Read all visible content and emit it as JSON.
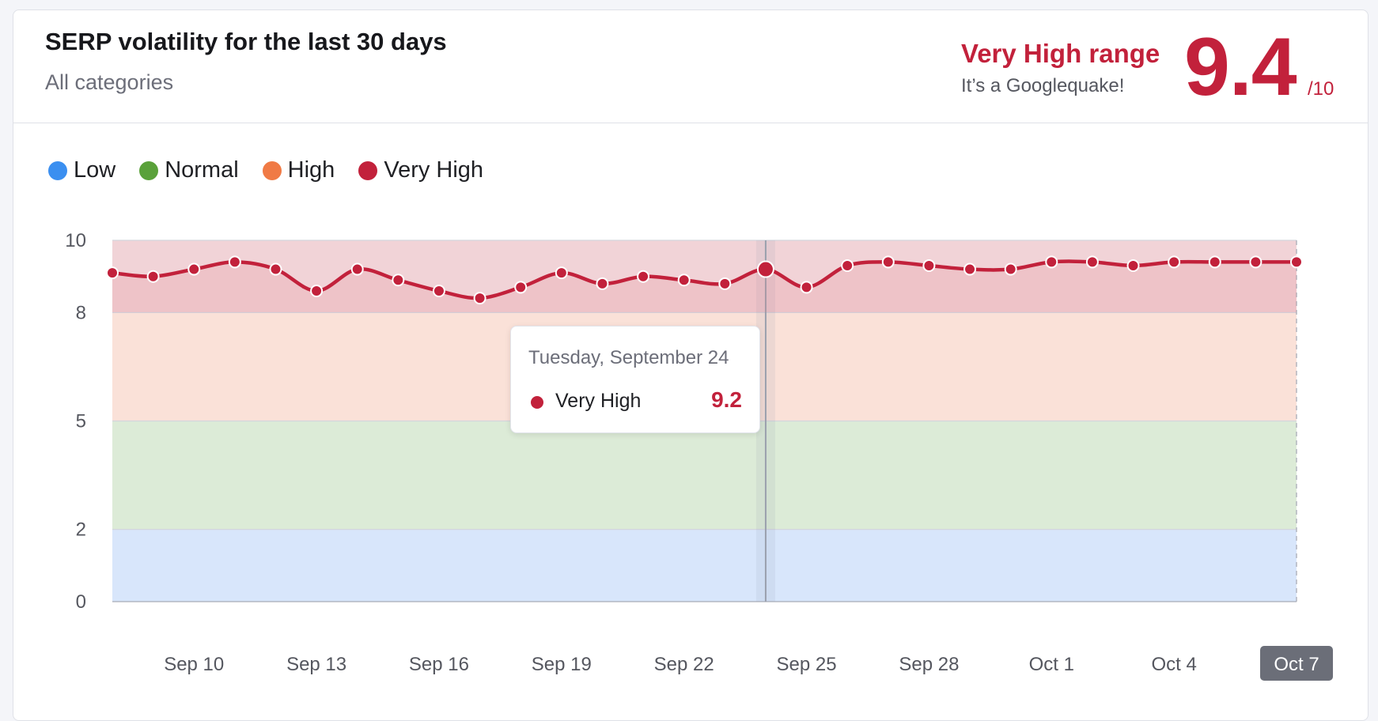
{
  "header": {
    "title": "SERP volatility for the last 30 days",
    "subtitle": "All categories",
    "range_label": "Very High range",
    "range_description": "It’s a Googlequake!",
    "score": "9.4",
    "score_max": "/10"
  },
  "legend": [
    {
      "label": "Low",
      "color": "#3b8ff0"
    },
    {
      "label": "Normal",
      "color": "#5aa13a"
    },
    {
      "label": "High",
      "color": "#f07a45"
    },
    {
      "label": "Very High",
      "color": "#c2213b"
    }
  ],
  "tooltip": {
    "date": "Tuesday, September 24",
    "series": "Very High",
    "value": "9.2",
    "dot_color": "#c2213b"
  },
  "chart_data": {
    "type": "line",
    "title": "SERP volatility for the last 30 days",
    "xlabel": "",
    "ylabel": "",
    "x": [
      "Sep 8",
      "Sep 9",
      "Sep 10",
      "Sep 11",
      "Sep 12",
      "Sep 13",
      "Sep 14",
      "Sep 15",
      "Sep 16",
      "Sep 17",
      "Sep 18",
      "Sep 19",
      "Sep 20",
      "Sep 21",
      "Sep 22",
      "Sep 23",
      "Sep 24",
      "Sep 25",
      "Sep 26",
      "Sep 27",
      "Sep 28",
      "Sep 29",
      "Sep 30",
      "Oct 1",
      "Oct 2",
      "Oct 3",
      "Oct 4",
      "Oct 5",
      "Oct 6",
      "Oct 7"
    ],
    "series": [
      {
        "name": "Very High",
        "color": "#c2213b",
        "values": [
          9.1,
          9.0,
          9.2,
          9.4,
          9.2,
          8.6,
          9.2,
          8.9,
          8.6,
          8.4,
          8.7,
          9.1,
          8.8,
          9.0,
          8.9,
          8.8,
          9.2,
          8.7,
          9.3,
          9.4,
          9.3,
          9.2,
          9.2,
          9.4,
          9.4,
          9.3,
          9.4,
          9.4,
          9.4,
          9.4
        ]
      }
    ],
    "ylim": [
      0,
      10
    ],
    "y_ticks": [
      0,
      2,
      5,
      8,
      10
    ],
    "x_tick_labels": [
      "Sep 10",
      "Sep 13",
      "Sep 16",
      "Sep 19",
      "Sep 22",
      "Sep 25",
      "Sep 28",
      "Oct 1",
      "Oct 4",
      "Oct 7"
    ],
    "x_tick_indices": [
      2,
      5,
      8,
      11,
      14,
      17,
      20,
      23,
      26,
      29
    ],
    "highlighted_x_label": "Oct 7",
    "hover_index": 16,
    "bands": [
      {
        "name": "Low",
        "from": 0,
        "to": 2,
        "color": "#d8e6fb"
      },
      {
        "name": "Normal",
        "from": 2,
        "to": 5,
        "color": "#dcebd7"
      },
      {
        "name": "High",
        "from": 5,
        "to": 8,
        "color": "#fae1d8"
      },
      {
        "name": "Very High",
        "from": 8,
        "to": 10,
        "color": "#f1d3d7"
      }
    ],
    "grid": true,
    "legend_position": "top-left"
  }
}
